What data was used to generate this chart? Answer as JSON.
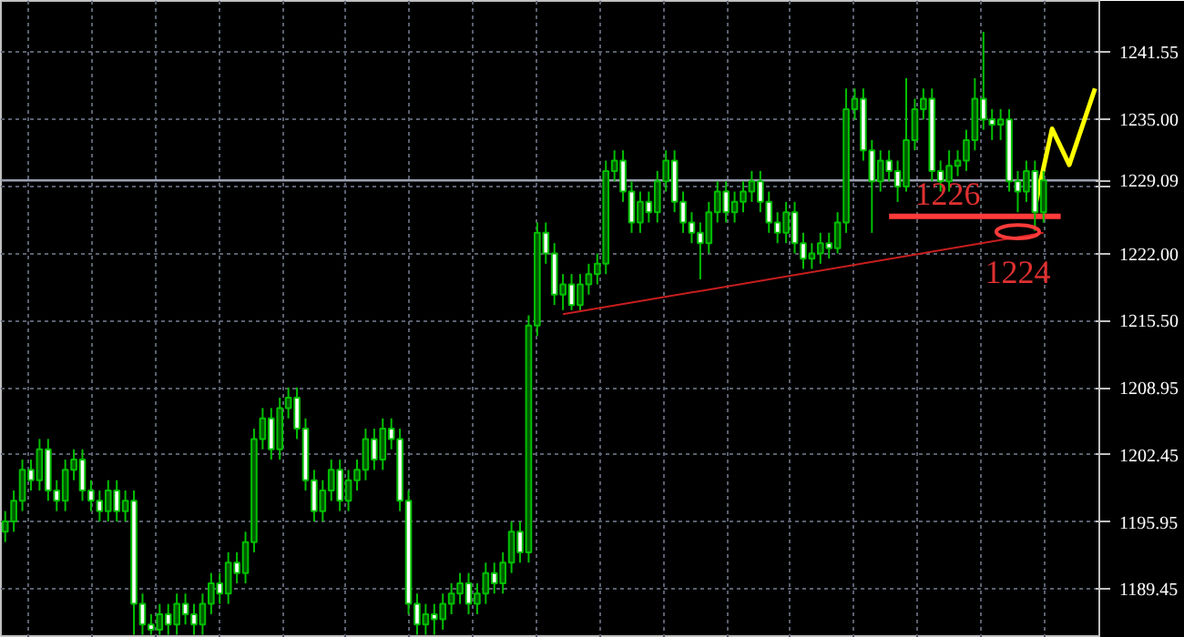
{
  "chart_data": {
    "type": "candlestick",
    "categories": [
      null,
      null,
      null,
      null,
      null,
      null,
      null,
      null,
      null,
      null,
      null,
      null,
      null,
      null,
      null,
      null,
      null,
      null,
      null,
      null,
      null,
      null,
      null,
      null,
      null,
      null,
      null,
      null,
      null,
      null,
      null,
      null,
      null,
      null,
      null,
      null,
      null,
      null,
      null,
      null,
      null,
      null,
      null,
      null,
      null,
      null,
      null,
      null,
      null,
      null,
      null,
      null,
      null,
      null,
      null,
      null,
      null,
      null,
      null,
      null,
      null,
      null,
      null,
      null,
      null,
      null,
      null,
      null,
      null,
      null,
      null,
      null,
      null,
      null,
      null,
      null,
      null,
      null,
      null,
      null,
      null,
      null,
      null,
      null,
      null,
      null,
      null,
      null,
      null,
      null,
      null,
      null,
      null,
      null,
      null,
      null,
      null,
      null,
      null,
      null,
      null,
      null,
      null,
      null,
      null,
      null,
      null,
      null,
      null,
      null,
      null,
      null,
      null,
      null,
      null,
      null,
      null,
      null,
      null,
      null,
      null,
      null,
      null,
      null,
      null,
      null,
      null,
      null
    ],
    "ohlc": [
      [
        1195,
        1197,
        1194,
        1196
      ],
      [
        1196,
        1199,
        1195,
        1198
      ],
      [
        1198,
        1202,
        1197,
        1201
      ],
      [
        1201,
        1202,
        1199,
        1200
      ],
      [
        1200,
        1204,
        1199,
        1203
      ],
      [
        1203,
        1204,
        1198,
        1199
      ],
      [
        1199,
        1200,
        1197,
        1198
      ],
      [
        1198,
        1202,
        1197,
        1201
      ],
      [
        1201,
        1203,
        1200,
        1202
      ],
      [
        1202,
        1203,
        1198,
        1199
      ],
      [
        1199,
        1200,
        1197,
        1198
      ],
      [
        1198,
        1199,
        1196,
        1197
      ],
      [
        1197,
        1200,
        1196,
        1199
      ],
      [
        1199,
        1200,
        1196,
        1197
      ],
      [
        1197,
        1199,
        1196,
        1198
      ],
      [
        1198,
        1199,
        1185,
        1188
      ],
      [
        1188,
        1189,
        1185,
        1186
      ],
      [
        1186,
        1187,
        1185,
        1185.5
      ],
      [
        1185.5,
        1188,
        1185,
        1187
      ],
      [
        1187,
        1188,
        1185,
        1186
      ],
      [
        1186,
        1189,
        1185,
        1188
      ],
      [
        1188,
        1189,
        1186,
        1187
      ],
      [
        1187,
        1188,
        1185,
        1186
      ],
      [
        1186,
        1189,
        1185,
        1188
      ],
      [
        1188,
        1191,
        1187,
        1190
      ],
      [
        1190,
        1191,
        1188,
        1189
      ],
      [
        1189,
        1193,
        1188,
        1192
      ],
      [
        1192,
        1193,
        1190,
        1191
      ],
      [
        1191,
        1195,
        1190,
        1194
      ],
      [
        1194,
        1205,
        1193,
        1204
      ],
      [
        1204,
        1207,
        1203,
        1206
      ],
      [
        1206,
        1207,
        1202,
        1203
      ],
      [
        1203,
        1208,
        1202,
        1207
      ],
      [
        1207,
        1209,
        1206,
        1208
      ],
      [
        1208,
        1209,
        1204,
        1205
      ],
      [
        1205,
        1206,
        1199,
        1200
      ],
      [
        1200,
        1201,
        1196,
        1197
      ],
      [
        1197,
        1200,
        1196,
        1199
      ],
      [
        1199,
        1202,
        1198,
        1201
      ],
      [
        1201,
        1202,
        1197,
        1198
      ],
      [
        1198,
        1201,
        1197,
        1200
      ],
      [
        1200,
        1202,
        1199,
        1201
      ],
      [
        1201,
        1205,
        1200,
        1204
      ],
      [
        1204,
        1205,
        1201,
        1202
      ],
      [
        1202,
        1206,
        1201,
        1205
      ],
      [
        1205,
        1206,
        1203,
        1204
      ],
      [
        1204,
        1205,
        1197,
        1198
      ],
      [
        1198,
        1199,
        1187,
        1188
      ],
      [
        1188,
        1189,
        1185,
        1186
      ],
      [
        1186,
        1188,
        1185,
        1187
      ],
      [
        1187,
        1188,
        1185,
        1186.5
      ],
      [
        1186.5,
        1189,
        1185.5,
        1188
      ],
      [
        1188,
        1190,
        1187,
        1189
      ],
      [
        1189,
        1191,
        1188,
        1190
      ],
      [
        1190,
        1191,
        1187,
        1188
      ],
      [
        1188,
        1190,
        1187,
        1189
      ],
      [
        1189,
        1192,
        1188,
        1191
      ],
      [
        1191,
        1192,
        1189,
        1190
      ],
      [
        1190,
        1193,
        1189,
        1192
      ],
      [
        1192,
        1196,
        1191,
        1195
      ],
      [
        1195,
        1196,
        1192,
        1193
      ],
      [
        1193,
        1216,
        1192,
        1215
      ],
      [
        1215,
        1225,
        1214,
        1224
      ],
      [
        1224,
        1225,
        1221,
        1222
      ],
      [
        1222,
        1223,
        1217,
        1218
      ],
      [
        1218,
        1220,
        1216.5,
        1219
      ],
      [
        1219,
        1220,
        1216.5,
        1217
      ],
      [
        1217,
        1220,
        1216.5,
        1219
      ],
      [
        1219,
        1221,
        1218,
        1220
      ],
      [
        1220,
        1222,
        1219,
        1221
      ],
      [
        1221,
        1231,
        1220,
        1230
      ],
      [
        1230,
        1232,
        1229,
        1231
      ],
      [
        1231,
        1232,
        1227,
        1228
      ],
      [
        1228,
        1229,
        1224,
        1225
      ],
      [
        1225,
        1228,
        1224,
        1227
      ],
      [
        1227,
        1228,
        1225,
        1226
      ],
      [
        1226,
        1230,
        1225,
        1229
      ],
      [
        1229,
        1232,
        1228,
        1231
      ],
      [
        1231,
        1232,
        1226,
        1227
      ],
      [
        1227,
        1228,
        1224,
        1225
      ],
      [
        1225,
        1226,
        1223,
        1224
      ],
      [
        1224,
        1225,
        1219.5,
        1223
      ],
      [
        1223,
        1227,
        1222,
        1226
      ],
      [
        1226,
        1229,
        1225,
        1228
      ],
      [
        1228,
        1229,
        1225,
        1226
      ],
      [
        1226,
        1228,
        1225,
        1227
      ],
      [
        1227,
        1229,
        1226,
        1228
      ],
      [
        1228,
        1230,
        1227,
        1229
      ],
      [
        1229,
        1230,
        1226,
        1227
      ],
      [
        1227,
        1228,
        1224,
        1225
      ],
      [
        1225,
        1226,
        1223,
        1224
      ],
      [
        1224,
        1227,
        1223,
        1226
      ],
      [
        1226,
        1227,
        1222,
        1223
      ],
      [
        1223,
        1224,
        1220.5,
        1221.5
      ],
      [
        1221.5,
        1223,
        1220.5,
        1222
      ],
      [
        1222,
        1224,
        1221,
        1223
      ],
      [
        1223,
        1224,
        1221.5,
        1222.5
      ],
      [
        1222.5,
        1226,
        1222,
        1225
      ],
      [
        1225,
        1238,
        1224,
        1236
      ],
      [
        1236,
        1238,
        1235,
        1237
      ],
      [
        1237,
        1238,
        1231,
        1232
      ],
      [
        1232,
        1233,
        1224,
        1229
      ],
      [
        1229,
        1232,
        1228,
        1231
      ],
      [
        1231,
        1232,
        1229,
        1230
      ],
      [
        1230,
        1231,
        1227,
        1228.5
      ],
      [
        1228.5,
        1239,
        1228,
        1233
      ],
      [
        1233,
        1237,
        1232,
        1236
      ],
      [
        1236,
        1238,
        1235,
        1237
      ],
      [
        1237,
        1238,
        1229,
        1230
      ],
      [
        1230,
        1231,
        1228,
        1229
      ],
      [
        1229,
        1232,
        1228,
        1230.5
      ],
      [
        1230.5,
        1232,
        1229.5,
        1231
      ],
      [
        1231,
        1234,
        1230,
        1233
      ],
      [
        1233,
        1239,
        1232,
        1237
      ],
      [
        1237,
        1243.5,
        1234,
        1235
      ],
      [
        1235,
        1236,
        1233,
        1234.5
      ],
      [
        1234.5,
        1236,
        1233,
        1235
      ],
      [
        1235,
        1236,
        1228,
        1229
      ],
      [
        1229,
        1230,
        1226,
        1228
      ],
      [
        1228,
        1231,
        1227,
        1230
      ],
      [
        1230,
        1231,
        1224.2,
        1226
      ],
      [
        1226,
        1230,
        1225,
        1229.09
      ],
      null,
      null,
      null,
      null,
      null,
      null
    ],
    "color": "#00c000",
    "colors": [
      "#005a00",
      "#005a00",
      "#005a00",
      "#ffffff",
      "#005a00",
      "#ffffff",
      "#ffffff",
      "#005a00",
      "#005a00",
      "#ffffff",
      "#ffffff",
      "#ffffff",
      "#005a00",
      "#ffffff",
      "#005a00",
      "#ffffff",
      "#ffffff",
      "#ffffff",
      "#005a00",
      "#ffffff",
      "#005a00",
      "#ffffff",
      "#ffffff",
      "#005a00",
      "#005a00",
      "#ffffff",
      "#005a00",
      "#ffffff",
      "#005a00",
      "#005a00",
      "#005a00",
      "#ffffff",
      "#005a00",
      "#005a00",
      "#ffffff",
      "#ffffff",
      "#ffffff",
      "#005a00",
      "#005a00",
      "#ffffff",
      "#005a00",
      "#005a00",
      "#005a00",
      "#ffffff",
      "#005a00",
      "#ffffff",
      "#ffffff",
      "#ffffff",
      "#ffffff",
      "#005a00",
      "#ffffff",
      "#005a00",
      "#005a00",
      "#005a00",
      "#ffffff",
      "#005a00",
      "#005a00",
      "#ffffff",
      "#005a00",
      "#005a00",
      "#ffffff",
      "#005a00",
      "#005a00",
      "#ffffff",
      "#ffffff",
      "#005a00",
      "#ffffff",
      "#005a00",
      "#005a00",
      "#005a00",
      "#005a00",
      "#005a00",
      "#ffffff",
      "#ffffff",
      "#005a00",
      "#ffffff",
      "#005a00",
      "#005a00",
      "#ffffff",
      "#ffffff",
      "#ffffff",
      "#ffffff",
      "#005a00",
      "#005a00",
      "#ffffff",
      "#005a00",
      "#005a00",
      "#005a00",
      "#ffffff",
      "#ffffff",
      "#ffffff",
      "#005a00",
      "#ffffff",
      "#ffffff",
      "#005a00",
      "#005a00",
      "#ffffff",
      "#005a00",
      "#005a00",
      "#005a00",
      "#ffffff",
      "#ffffff",
      "#005a00",
      "#ffffff",
      "#ffffff",
      "#005a00",
      "#005a00",
      "#005a00",
      "#ffffff",
      "#ffffff",
      "#005a00",
      "#005a00",
      "#005a00",
      "#005a00",
      "#ffffff",
      "#ffffff",
      "#005a00",
      "#ffffff",
      "#ffffff",
      "#005a00",
      "#ffffff",
      "#005a00",
      null,
      null,
      null,
      null,
      null,
      null
    ],
    "series": [
      {
        "type": "line",
        "color": "#c81e1e",
        "values": [
          null,
          null,
          null,
          null,
          null,
          null,
          null,
          null,
          null,
          null,
          null,
          null,
          null,
          null,
          null,
          null,
          null,
          null,
          null,
          null,
          null,
          null,
          null,
          null,
          null,
          null,
          null,
          null,
          null,
          null,
          null,
          null,
          null,
          null,
          null,
          null,
          null,
          null,
          null,
          null,
          null,
          null,
          null,
          null,
          null,
          null,
          null,
          null,
          null,
          null,
          null,
          null,
          null,
          null,
          null,
          null,
          null,
          null,
          null,
          null,
          null,
          null,
          null,
          null,
          null,
          1216.1,
          null,
          null,
          null,
          null,
          null,
          null,
          null,
          null,
          null,
          null,
          null,
          null,
          null,
          null,
          null,
          null,
          null,
          null,
          null,
          null,
          null,
          null,
          null,
          null,
          null,
          null,
          null,
          null,
          null,
          null,
          null,
          null,
          null,
          null,
          null,
          null,
          null,
          null,
          null,
          null,
          null,
          null,
          null,
          null,
          null,
          null,
          null,
          null,
          null,
          null,
          null,
          null,
          null,
          null,
          null,
          1224.0,
          null,
          null,
          null,
          null,
          null,
          null
        ]
      },
      {
        "type": "line",
        "color": "#ff3b3b",
        "values": [
          null,
          null,
          null,
          null,
          null,
          null,
          null,
          null,
          null,
          null,
          null,
          null,
          null,
          null,
          null,
          null,
          null,
          null,
          null,
          null,
          null,
          null,
          null,
          null,
          null,
          null,
          null,
          null,
          null,
          null,
          null,
          null,
          null,
          null,
          null,
          null,
          null,
          null,
          null,
          null,
          null,
          null,
          null,
          null,
          null,
          null,
          null,
          null,
          null,
          null,
          null,
          null,
          null,
          null,
          null,
          null,
          null,
          null,
          null,
          null,
          null,
          null,
          null,
          null,
          null,
          null,
          null,
          null,
          null,
          null,
          null,
          null,
          null,
          null,
          null,
          null,
          null,
          null,
          null,
          null,
          null,
          null,
          null,
          null,
          null,
          null,
          null,
          null,
          null,
          null,
          null,
          null,
          null,
          null,
          null,
          null,
          null,
          null,
          null,
          null,
          null,
          null,
          null,
          1225.6,
          null,
          null,
          null,
          null,
          null,
          null,
          null,
          null,
          null,
          null,
          null,
          null,
          null,
          null,
          null,
          null,
          null,
          null,
          null,
          1225.6,
          null,
          null,
          null,
          null
        ]
      },
      {
        "type": "line",
        "color": "#ffff00",
        "values": [
          null,
          null,
          null,
          null,
          null,
          null,
          null,
          null,
          null,
          null,
          null,
          null,
          null,
          null,
          null,
          null,
          null,
          null,
          null,
          null,
          null,
          null,
          null,
          null,
          null,
          null,
          null,
          null,
          null,
          null,
          null,
          null,
          null,
          null,
          null,
          null,
          null,
          null,
          null,
          null,
          null,
          null,
          null,
          null,
          null,
          null,
          null,
          null,
          null,
          null,
          null,
          null,
          null,
          null,
          null,
          null,
          null,
          null,
          null,
          null,
          null,
          null,
          null,
          null,
          null,
          null,
          null,
          null,
          null,
          null,
          null,
          null,
          null,
          null,
          null,
          null,
          null,
          null,
          null,
          null,
          null,
          null,
          null,
          null,
          null,
          null,
          null,
          null,
          null,
          null,
          null,
          null,
          null,
          null,
          null,
          null,
          null,
          null,
          null,
          null,
          null,
          null,
          null,
          null,
          null,
          null,
          null,
          null,
          null,
          null,
          null,
          null,
          null,
          null,
          null,
          null,
          null,
          null,
          null,
          null,
          1226.5,
          null,
          1234.1,
          null,
          1230.6,
          null,
          null,
          1238
        ]
      }
    ],
    "ylim": [
      1184.7,
      1246.5
    ],
    "yticks": [
      1189.45,
      1195.95,
      1202.45,
      1208.95,
      {
        "value": 1215.5,
        "label": "1215.50"
      },
      {
        "value": 1222,
        "label": "1222.00"
      },
      {
        "value": 1228.5,
        "label": null
      },
      {
        "value": 1235,
        "label": "1235.00"
      },
      1241.55
    ],
    "ref_lines": [
      {
        "axis": "y",
        "value": 1229.09,
        "label": "1229.09",
        "color": "#9aa0b0"
      }
    ],
    "annotations": [
      {
        "text": "1226",
        "y": 1226
      },
      {
        "text": "1224",
        "y": 1224.1
      }
    ],
    "grid": true
  }
}
